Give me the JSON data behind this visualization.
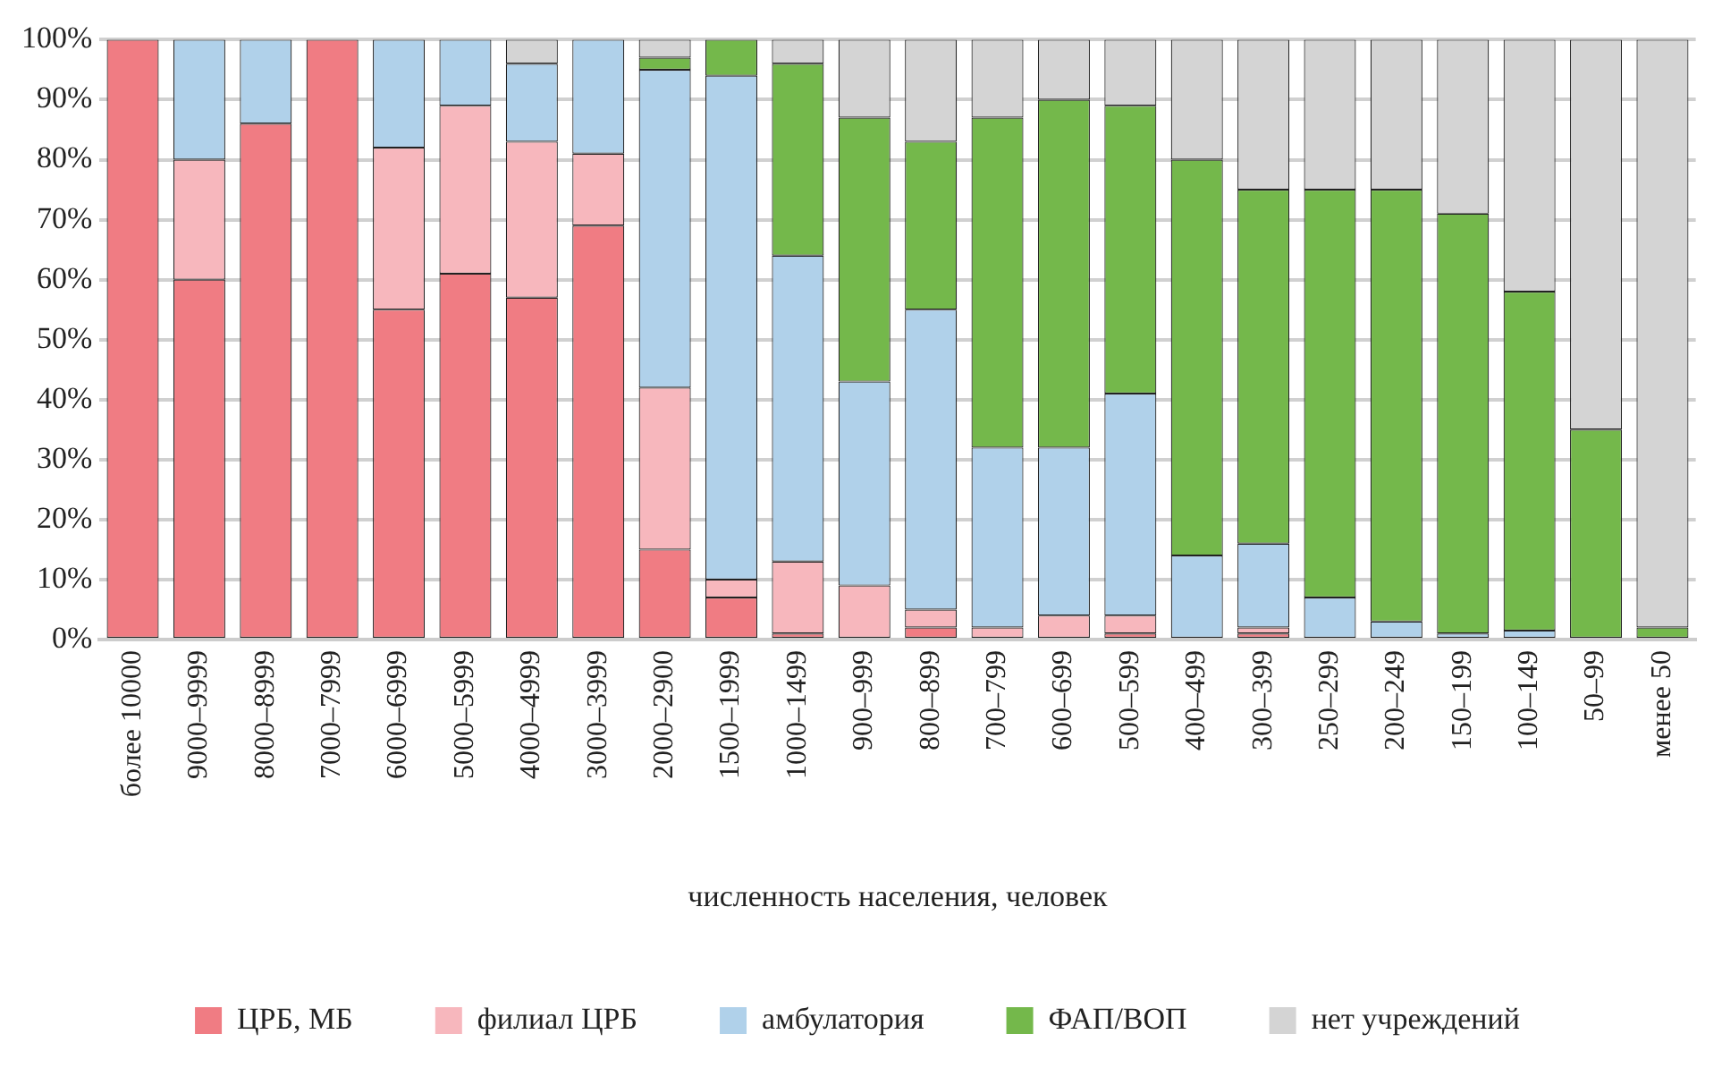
{
  "chart_data": {
    "type": "bar",
    "stacked": true,
    "xlabel": "численность населения, человек",
    "categories": [
      "более 10000",
      "9000–9999",
      "8000–8999",
      "7000–7999",
      "6000–6999",
      "5000–5999",
      "4000–4999",
      "3000–3999",
      "2000–2900",
      "1500–1999",
      "1000–1499",
      "900–999",
      "800–899",
      "700–799",
      "600–699",
      "500–599",
      "400–499",
      "300–399",
      "250–299",
      "200–249",
      "150–199",
      "100–149",
      "50–99",
      "менее 50"
    ],
    "series": [
      {
        "name": "ЦРБ, МБ",
        "color": "#f07c83",
        "values": [
          100,
          60,
          86,
          100,
          55,
          61,
          57,
          69,
          15,
          7,
          1,
          0,
          2,
          0,
          0,
          1,
          0,
          1,
          0,
          0,
          0,
          0,
          0,
          0
        ]
      },
      {
        "name": "филиал ЦРБ",
        "color": "#f7b7bd",
        "values": [
          0,
          20,
          0,
          0,
          27,
          28,
          26,
          12,
          27,
          3,
          12,
          9,
          3,
          2,
          4,
          3,
          0,
          1,
          0,
          0,
          0,
          0,
          0,
          0
        ]
      },
      {
        "name": "амбулатория",
        "color": "#b0d1ea",
        "values": [
          0,
          20,
          14,
          0,
          18,
          11,
          13,
          19,
          53,
          84,
          51,
          34,
          50,
          30,
          28,
          37,
          14,
          14,
          7,
          3,
          1,
          1.5,
          0,
          0
        ]
      },
      {
        "name": "ФАП/ВОП",
        "color": "#74b84b",
        "values": [
          0,
          0,
          0,
          0,
          0,
          0,
          0,
          0,
          2,
          6,
          32,
          44,
          28,
          55,
          58,
          48,
          66,
          59,
          68,
          72,
          70,
          56.5,
          35,
          2
        ]
      },
      {
        "name": "нет учреждений",
        "color": "#d4d4d4",
        "values": [
          0,
          0,
          0,
          0,
          0,
          0,
          4,
          0,
          3,
          0,
          4,
          13,
          17,
          13,
          10,
          11,
          20,
          25,
          25,
          25,
          29,
          42,
          65,
          98
        ]
      }
    ],
    "ylim": [
      0,
      100
    ],
    "yticks": [
      {
        "value": 0,
        "label": "0%"
      },
      {
        "value": 10,
        "label": "10%"
      },
      {
        "value": 20,
        "label": "20%"
      },
      {
        "value": 30,
        "label": "30%"
      },
      {
        "value": 40,
        "label": "40%"
      },
      {
        "value": 50,
        "label": "50%"
      },
      {
        "value": 60,
        "label": "60%"
      },
      {
        "value": 70,
        "label": "70%"
      },
      {
        "value": 80,
        "label": "80%"
      },
      {
        "value": 90,
        "label": "90%"
      },
      {
        "value": 100,
        "label": "100%"
      }
    ],
    "grid": "y",
    "legend": "bottom"
  }
}
